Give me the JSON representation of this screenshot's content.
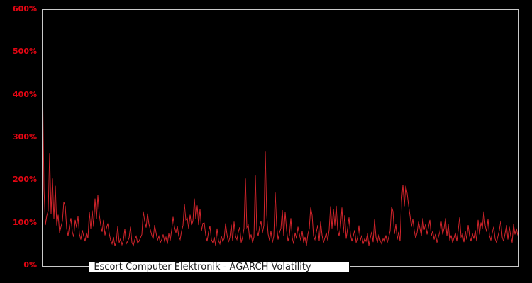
{
  "colors": {
    "background": "#000000",
    "frame_gray": "#c9c9c9",
    "series_red": "#d3242b",
    "tick_label_red": "#e30613",
    "legend_bg": "#ffffff",
    "legend_border": "#000000",
    "legend_text": "#1a1a1a"
  },
  "legend": {
    "label": "Escort Computer Elektronik - AGARCH Volatility",
    "sample_icon": "red-line-sample",
    "position": "bottom-inside-plot"
  },
  "chart_data": {
    "type": "line",
    "title": "",
    "xlabel": "",
    "ylabel": "",
    "x_axis_note": "time index, no tick labels shown",
    "ylim": [
      0,
      600
    ],
    "y_tick_labels": [
      "0%",
      "100%",
      "200%",
      "300%",
      "400%",
      "500%",
      "600%"
    ],
    "y_tick_values": [
      0,
      100,
      200,
      300,
      400,
      500,
      600
    ],
    "grid": false,
    "legend_position": "bottom center inside plot",
    "series": [
      {
        "name": "Escort Computer Elektronik - AGARCH Volatility",
        "color": "#d3242b",
        "unit": "percent",
        "n_points": 336,
        "values": [
          437,
          182,
          96,
          118,
          130,
          265,
          122,
          205,
          110,
          188,
          95,
          120,
          78,
          92,
          105,
          150,
          140,
          88,
          70,
          95,
          112,
          80,
          68,
          108,
          90,
          117,
          75,
          62,
          84,
          70,
          58,
          78,
          65,
          126,
          88,
          130,
          92,
          158,
          110,
          166,
          120,
          96,
          80,
          108,
          72,
          88,
          100,
          76,
          60,
          52,
          68,
          47,
          58,
          93,
          55,
          64,
          50,
          60,
          87,
          52,
          58,
          66,
          92,
          55,
          48,
          62,
          70,
          54,
          58,
          66,
          74,
          128,
          105,
          90,
          123,
          98,
          85,
          72,
          64,
          96,
          78,
          60,
          70,
          55,
          62,
          74,
          58,
          68,
          52,
          76,
          60,
          84,
          115,
          92,
          78,
          94,
          70,
          62,
          82,
          95,
          145,
          108,
          112,
          88,
          120,
          96,
          105,
          158,
          110,
          142,
          96,
          134,
          82,
          100,
          101,
          72,
          58,
          80,
          94,
          62,
          55,
          68,
          48,
          88,
          60,
          52,
          70,
          58,
          64,
          100,
          74,
          56,
          66,
          97,
          58,
          104,
          70,
          62,
          80,
          91,
          55,
          68,
          88,
          205,
          90,
          96,
          62,
          74,
          55,
          68,
          212,
          85,
          70,
          92,
          105,
          78,
          95,
          268,
          120,
          75,
          60,
          82,
          55,
          70,
          172,
          95,
          62,
          78,
          88,
          131,
          70,
          126,
          84,
          58,
          72,
          112,
          66,
          52,
          78,
          64,
          92,
          75,
          60,
          82,
          55,
          68,
          48,
          74,
          88,
          137,
          119,
          70,
          62,
          80,
          96,
          58,
          104,
          72,
          55,
          66,
          78,
          60,
          85,
          140,
          88,
          134,
          95,
          141,
          85,
          70,
          92,
          137,
          78,
          119,
          64,
          88,
          114,
          75,
          58,
          70,
          84,
          55,
          66,
          95,
          60,
          72,
          52,
          64,
          58,
          76,
          48,
          66,
          80,
          56,
          109,
          68,
          55,
          74,
          60,
          52,
          64,
          58,
          72,
          55,
          68,
          82,
          139,
          128,
          75,
          98,
          62,
          80,
          58,
          150,
          190,
          140,
          188,
          170,
          142,
          118,
          92,
          110,
          82,
          65,
          78,
          104,
          88,
          70,
          112,
          85,
          98,
          74,
          90,
          108,
          70,
          82,
          62,
          75,
          55,
          68,
          80,
          104,
          74,
          88,
          112,
          70,
          98,
          60,
          72,
          55,
          66,
          78,
          58,
          84,
          114,
          68,
          75,
          56,
          82,
          62,
          96,
          70,
          58,
          76,
          64,
          84,
          58,
          108,
          74,
          102,
          88,
          128,
          95,
          80,
          110,
          72,
          60,
          78,
          92,
          64,
          55,
          70,
          84,
          106,
          68,
          58,
          76,
          96,
          62,
          92,
          70,
          55,
          98,
          74,
          88,
          72
        ]
      }
    ]
  }
}
